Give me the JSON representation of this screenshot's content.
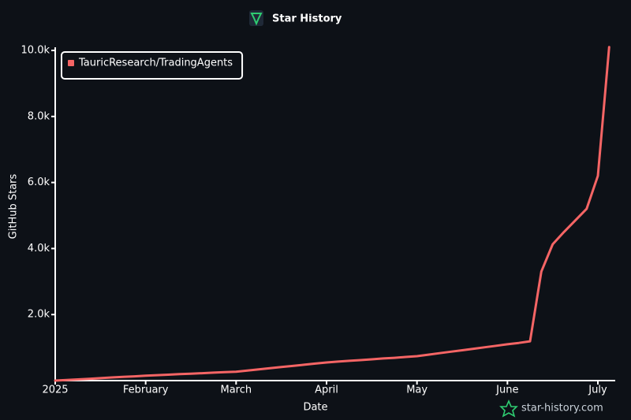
{
  "chart_data": {
    "type": "line",
    "title": "Star History",
    "x_label": "Date",
    "y_label": "GitHub Stars",
    "watermark": "star-history.com",
    "legend": "top-left",
    "grid": false,
    "categories": [
      "2025",
      null,
      null,
      null,
      null,
      null,
      null,
      null,
      "February",
      null,
      null,
      null,
      null,
      null,
      null,
      null,
      "March",
      null,
      null,
      null,
      null,
      null,
      null,
      null,
      "April",
      null,
      null,
      null,
      null,
      null,
      null,
      null,
      "May",
      null,
      null,
      null,
      null,
      null,
      null,
      null,
      "June",
      null,
      null,
      null,
      null,
      null,
      null,
      null,
      "July",
      null
    ],
    "series": [
      {
        "name": "TauricResearch/TradingAgents",
        "color": "#f56565",
        "values": [
          0,
          18,
          36,
          55,
          75,
          95,
          112,
          130,
          150,
          165,
          180,
          195,
          210,
          225,
          240,
          255,
          270,
          305,
          340,
          375,
          410,
          445,
          480,
          515,
          550,
          575,
          600,
          620,
          645,
          670,
          690,
          715,
          740,
          785,
          830,
          875,
          920,
          965,
          1010,
          1055,
          1100,
          1140,
          1190,
          3300,
          4130,
          4500,
          4850,
          5200,
          6200,
          10100
        ]
      }
    ],
    "ylim": [
      0,
      10000
    ],
    "yticks": [
      {
        "value": 2000,
        "label": "2.0k"
      },
      {
        "value": 4000,
        "label": "4.0k"
      },
      {
        "value": 6000,
        "label": "6.0k"
      },
      {
        "value": 8000,
        "label": "8.0k"
      },
      {
        "value": 10000,
        "label": "10.0k"
      }
    ]
  }
}
